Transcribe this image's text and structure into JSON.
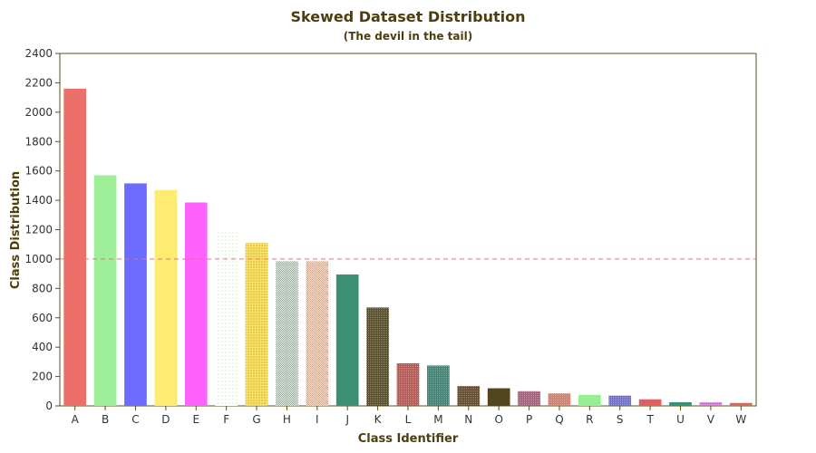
{
  "chart_data": {
    "type": "bar",
    "title": "Skewed Dataset Distribution",
    "subtitle": "(The devil in the tail)",
    "xlabel": "Class Identifier",
    "ylabel": "Class Distribution",
    "ylim": [
      0,
      2400
    ],
    "yticks": [
      0,
      200,
      400,
      600,
      800,
      1000,
      1200,
      1400,
      1600,
      1800,
      2000,
      2200,
      2400
    ],
    "grid": false,
    "reference_line": {
      "value": 1000,
      "color": "#e57373",
      "style": "dashed"
    },
    "categories": [
      "A",
      "B",
      "C",
      "D",
      "E",
      "F",
      "G",
      "H",
      "I",
      "J",
      "K",
      "L",
      "M",
      "N",
      "O",
      "P",
      "Q",
      "R",
      "S",
      "T",
      "U",
      "V",
      "W"
    ],
    "values": [
      2160,
      1570,
      1515,
      1470,
      1385,
      1185,
      1110,
      985,
      985,
      895,
      670,
      290,
      275,
      135,
      120,
      100,
      85,
      75,
      70,
      45,
      25,
      25,
      20
    ],
    "colors": [
      "#ed6f6a",
      "#9eee9a",
      "#6b6bfd",
      "#fdeb72",
      "#fd62fc",
      "#b7e4b4",
      "#fde264",
      "#8b9b8f",
      "#d49a84",
      "#3b8f73",
      "#5b4f1a",
      "#cb4f47",
      "#2f8a77",
      "#6e4a22",
      "#54461c",
      "#b5577b",
      "#e0785f",
      "#95f095",
      "#6b6be6",
      "#e06060",
      "#3a8f7a",
      "#e266e6",
      "#e0665a"
    ],
    "patterns": [
      "solid",
      "solid",
      "solid",
      "solid",
      "solid",
      "sparse-dots",
      "dots",
      "dense-dots",
      "dense-dots",
      "solid",
      "grid",
      "grid",
      "grid",
      "grid",
      "solid",
      "grid",
      "grid",
      "solid",
      "grid",
      "solid",
      "solid",
      "grid",
      "solid"
    ]
  }
}
